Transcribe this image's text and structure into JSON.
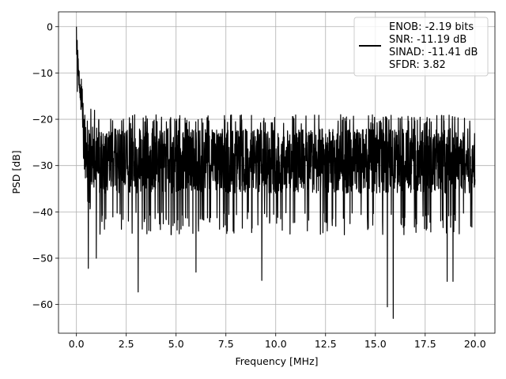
{
  "chart_data": {
    "type": "line",
    "title": "",
    "xlabel": "Frequency [MHz]",
    "ylabel": "PSD [dB]",
    "xlim": [
      -0.9,
      21.0
    ],
    "ylim": [
      -66.2,
      3.2
    ],
    "xticks": [
      0.0,
      2.5,
      5.0,
      7.5,
      10.0,
      12.5,
      15.0,
      17.5,
      20.0
    ],
    "xtick_labels": [
      "0.0",
      "2.5",
      "5.0",
      "7.5",
      "10.0",
      "12.5",
      "15.0",
      "17.5",
      "20.0"
    ],
    "yticks": [
      0,
      -10,
      -20,
      -30,
      -40,
      -50,
      -60
    ],
    "ytick_labels": [
      "0",
      "−10",
      "−20",
      "−30",
      "−40",
      "−50",
      "−60"
    ],
    "grid": true,
    "legend_position": "top-right",
    "legend_lines": [
      "ENOB: -2.19 bits",
      "SNR: -11.19 dB",
      "SINAD: -11.41 dB",
      "SFDR: 3.82"
    ],
    "line_color": "#000000",
    "series": [
      {
        "x_start": 0.0,
        "x_end": 20.0,
        "points": 2048,
        "anchor_points": [
          [
            0.0,
            0.0
          ],
          [
            0.01,
            -6.0
          ],
          [
            0.05,
            -14.0
          ],
          [
            0.1,
            -10.0
          ],
          [
            0.2,
            -14.0
          ],
          [
            0.3,
            -19.0
          ],
          [
            0.6,
            -52.2
          ],
          [
            1.0,
            -50.0
          ],
          [
            3.1,
            -57.3
          ],
          [
            6.0,
            -53.0
          ],
          [
            9.3,
            -54.8
          ],
          [
            15.6,
            -60.5
          ],
          [
            15.9,
            -63.0
          ],
          [
            18.6,
            -55.0
          ],
          [
            18.9,
            -55.0
          ],
          [
            20.0,
            -33.0
          ]
        ],
        "noise_floor_db": -29.0,
        "noise_upper_db": -21.0,
        "noise_lower_db": -40.0,
        "dip_values_db": [
          -52.2,
          -57.3,
          -53.0,
          -54.8,
          -60.5,
          -63.0,
          -55.0
        ]
      }
    ]
  }
}
